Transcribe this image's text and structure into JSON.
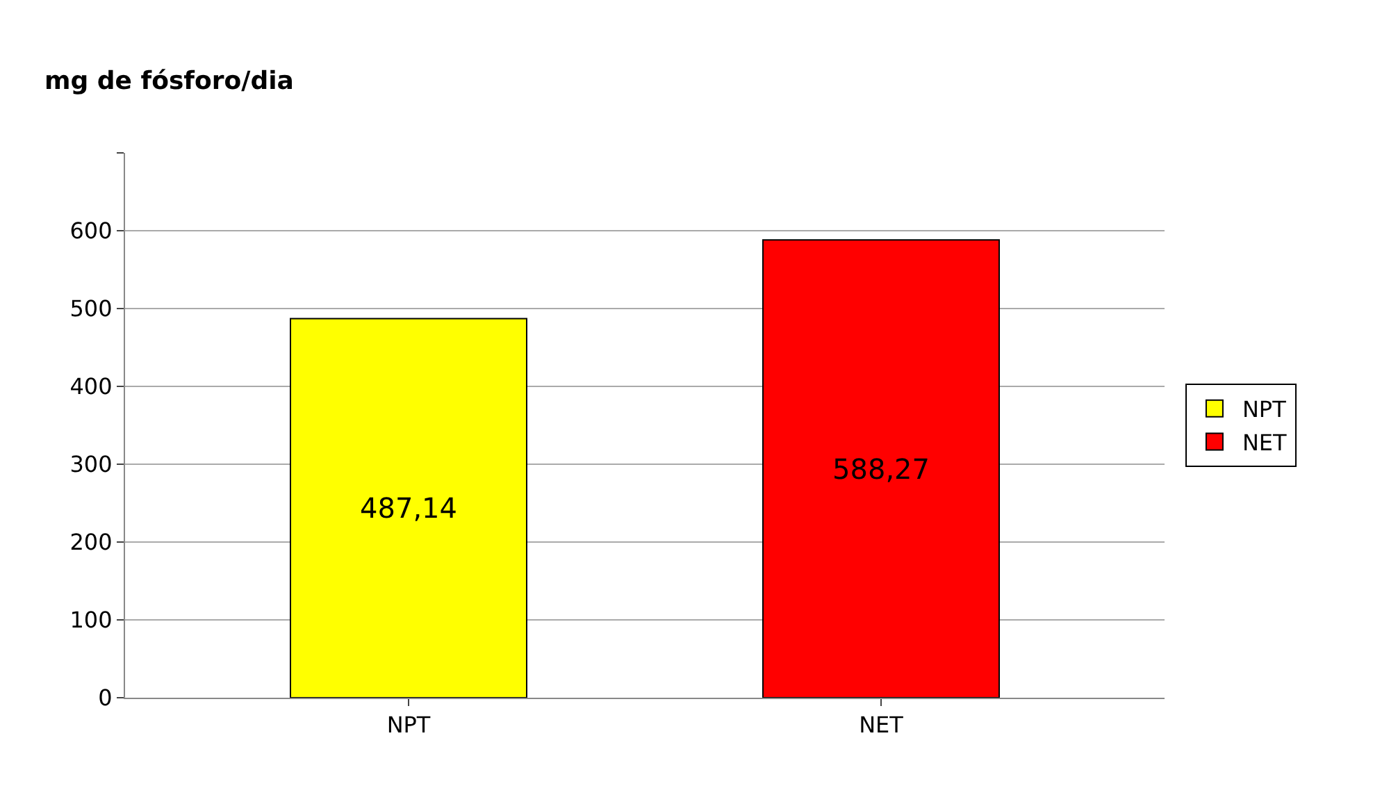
{
  "chart_data": {
    "type": "bar",
    "ylabel": "mg de fósforo/dia",
    "categories": [
      "NPT",
      "NET"
    ],
    "series": [
      {
        "name": "NPT",
        "color": "#ffff00",
        "values": [
          487.14,
          null
        ],
        "value_labels": [
          "487,14",
          null
        ]
      },
      {
        "name": "NET",
        "color": "#ff0000",
        "values": [
          null,
          588.27
        ],
        "value_labels": [
          null,
          "588,27"
        ]
      }
    ],
    "ylim": [
      0,
      700
    ],
    "yticks": [
      0,
      100,
      200,
      300,
      400,
      500,
      600,
      {
        "value": 700,
        "label": null
      }
    ],
    "grid": "y",
    "legend": "right"
  }
}
